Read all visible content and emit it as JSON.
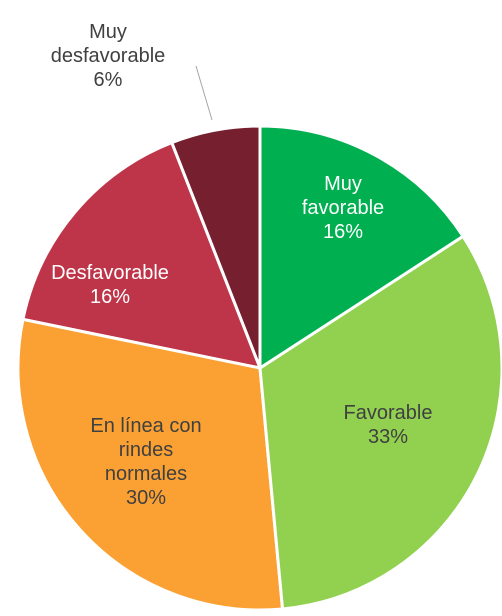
{
  "chart_data": {
    "type": "pie",
    "categories": [
      "Muy favorable",
      "Favorable",
      "En línea con rindes normales",
      "Desfavorable",
      "Muy desfavorable"
    ],
    "values": [
      16,
      33,
      30,
      16,
      6
    ],
    "value_labels": [
      "16%",
      "33%",
      "30%",
      "16%",
      "6%"
    ],
    "colors": [
      "#00b050",
      "#92d050",
      "#fba133",
      "#be3549",
      "#76202f"
    ]
  }
}
